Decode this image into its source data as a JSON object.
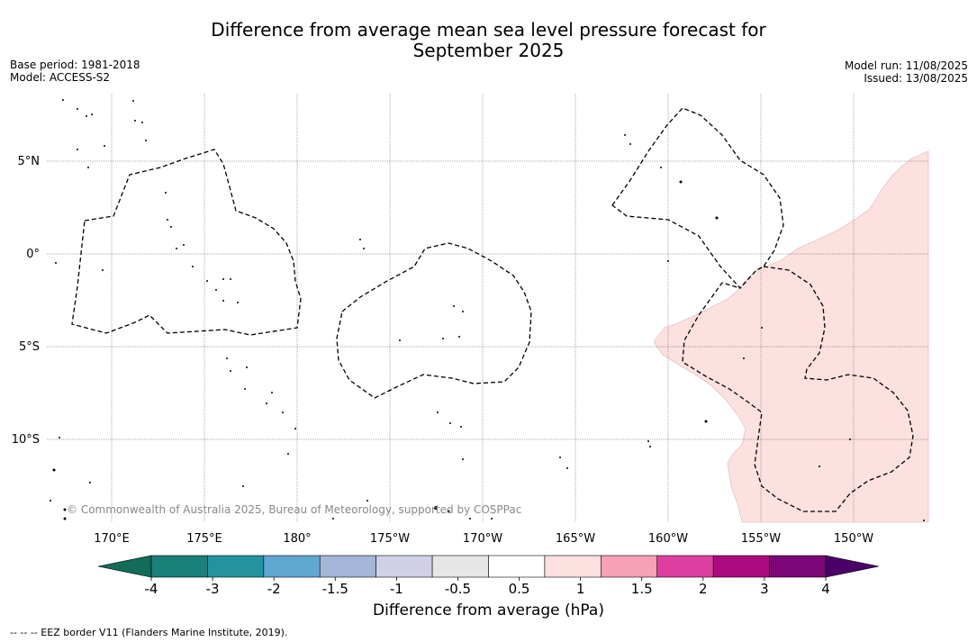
{
  "title_line1": "Difference from average mean sea level pressure forecast for",
  "title_line2": "September 2025",
  "base_period": "Base period: 1981-2018",
  "model": "Model: ACCESS-S2",
  "model_run": "Model run: 11/08/2025",
  "issued": "Issued: 13/08/2025",
  "copyright": "© Commonwealth of Australia 2025, Bureau of Meteorology, supported by COSPPac",
  "footer": "--  --  -- EEZ border V11 (Flanders Marine Institute, 2019).",
  "map": {
    "lon_labels": [
      "170°E",
      "175°E",
      "180°",
      "175°W",
      "170°W",
      "165°W",
      "160°W",
      "155°W",
      "150°W"
    ],
    "lat_labels": [
      "5°N",
      "0°",
      "5°S",
      "10°S"
    ],
    "anomaly_region_color": "#fde0e0"
  },
  "colorbar": {
    "label": "Difference from average (hPa)",
    "ticks": [
      "-4",
      "-3",
      "-2",
      "-1.5",
      "-1",
      "-0.5",
      "0.5",
      "1",
      "1.5",
      "2",
      "3",
      "4"
    ],
    "colors": [
      "#1b7f7a",
      "#2493a0",
      "#5fa8cf",
      "#a3b6d8",
      "#d0d0e6",
      "#e6e6e6",
      "#ffffff",
      "#fde0e0",
      "#f8a0b5",
      "#dd3fa0",
      "#ac0a7e",
      "#7b0677"
    ],
    "under_color": "#126c5a",
    "over_color": "#4a0068"
  }
}
